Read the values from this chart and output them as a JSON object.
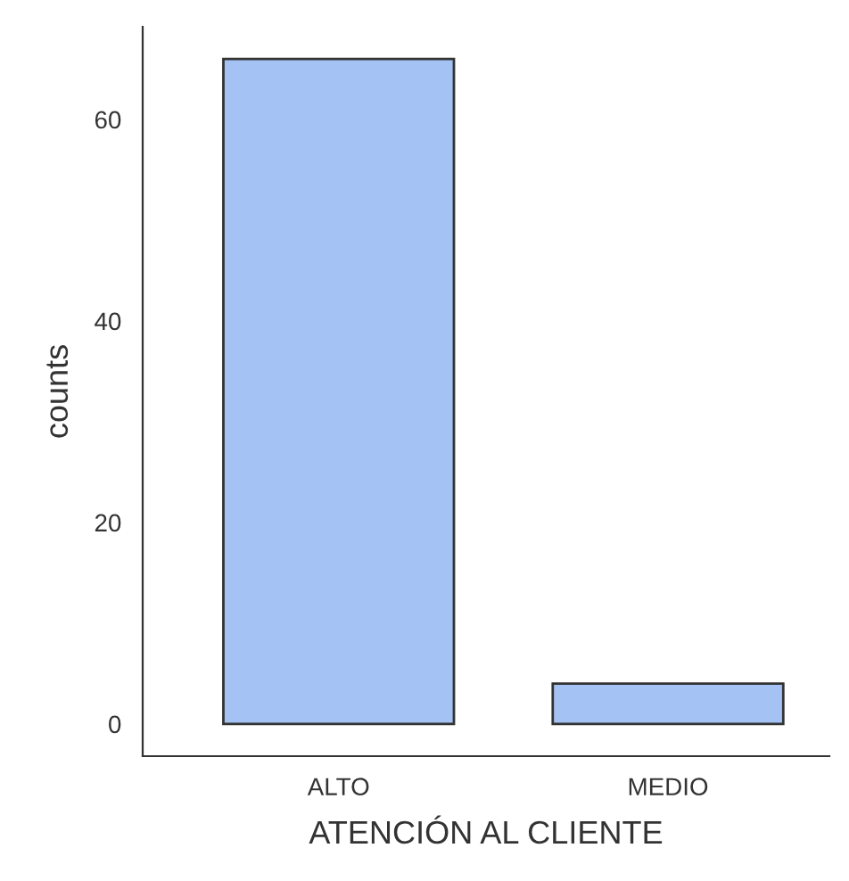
{
  "chart_data": {
    "type": "bar",
    "xlabel": "ATENCIÓN AL CLIENTE",
    "ylabel": "counts",
    "categories": [
      "ALTO",
      "MEDIO"
    ],
    "values": [
      66,
      4
    ],
    "color": "#a4c2f4",
    "ylim": [
      -3.2,
      69.2
    ],
    "yticks": [
      0,
      20,
      40,
      60
    ],
    "grid": false
  }
}
